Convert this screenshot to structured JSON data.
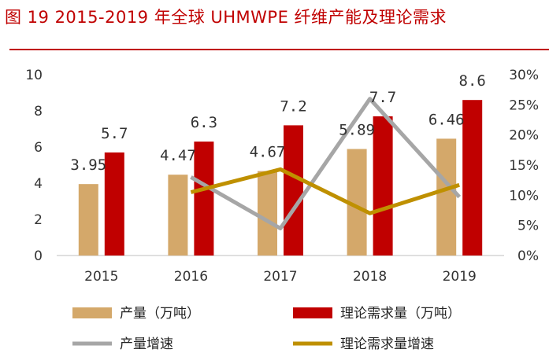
{
  "title": "图 19 2015-2019 年全球 UHMWPE 纤维产能及理论需求",
  "chart_data": {
    "type": "bar",
    "categories": [
      "2015",
      "2016",
      "2017",
      "2018",
      "2019"
    ],
    "series": [
      {
        "name": "产量（万吨）",
        "kind": "bar",
        "axis": "left",
        "color": "#d4a86a",
        "values": [
          3.95,
          4.47,
          4.67,
          5.89,
          6.46
        ],
        "labels": [
          "3.95",
          "4.47",
          "4.67",
          "5.89",
          "6.46"
        ]
      },
      {
        "name": "理论需求量（万吨）",
        "kind": "bar",
        "axis": "left",
        "color": "#c00000",
        "values": [
          5.7,
          6.3,
          7.2,
          7.7,
          8.6
        ],
        "labels": [
          "5.7",
          "6.3",
          "7.2",
          "7.7",
          "8.6"
        ]
      },
      {
        "name": "产量增速",
        "kind": "line",
        "axis": "right",
        "color": "#a6a6a6",
        "values": [
          null,
          0.13,
          0.045,
          0.26,
          0.097
        ]
      },
      {
        "name": "理论需求量增速",
        "kind": "line",
        "axis": "right",
        "color": "#bf9000",
        "values": [
          null,
          0.105,
          0.143,
          0.07,
          0.117
        ]
      }
    ],
    "y_left": {
      "min": 0,
      "max": 10,
      "ticks": [
        "0",
        "2",
        "4",
        "6",
        "8",
        "10"
      ]
    },
    "y_right": {
      "min": 0,
      "max": 0.3,
      "ticks": [
        "0%",
        "5%",
        "10%",
        "15%",
        "20%",
        "25%",
        "30%"
      ]
    },
    "grid": false,
    "legend_position": "bottom"
  }
}
